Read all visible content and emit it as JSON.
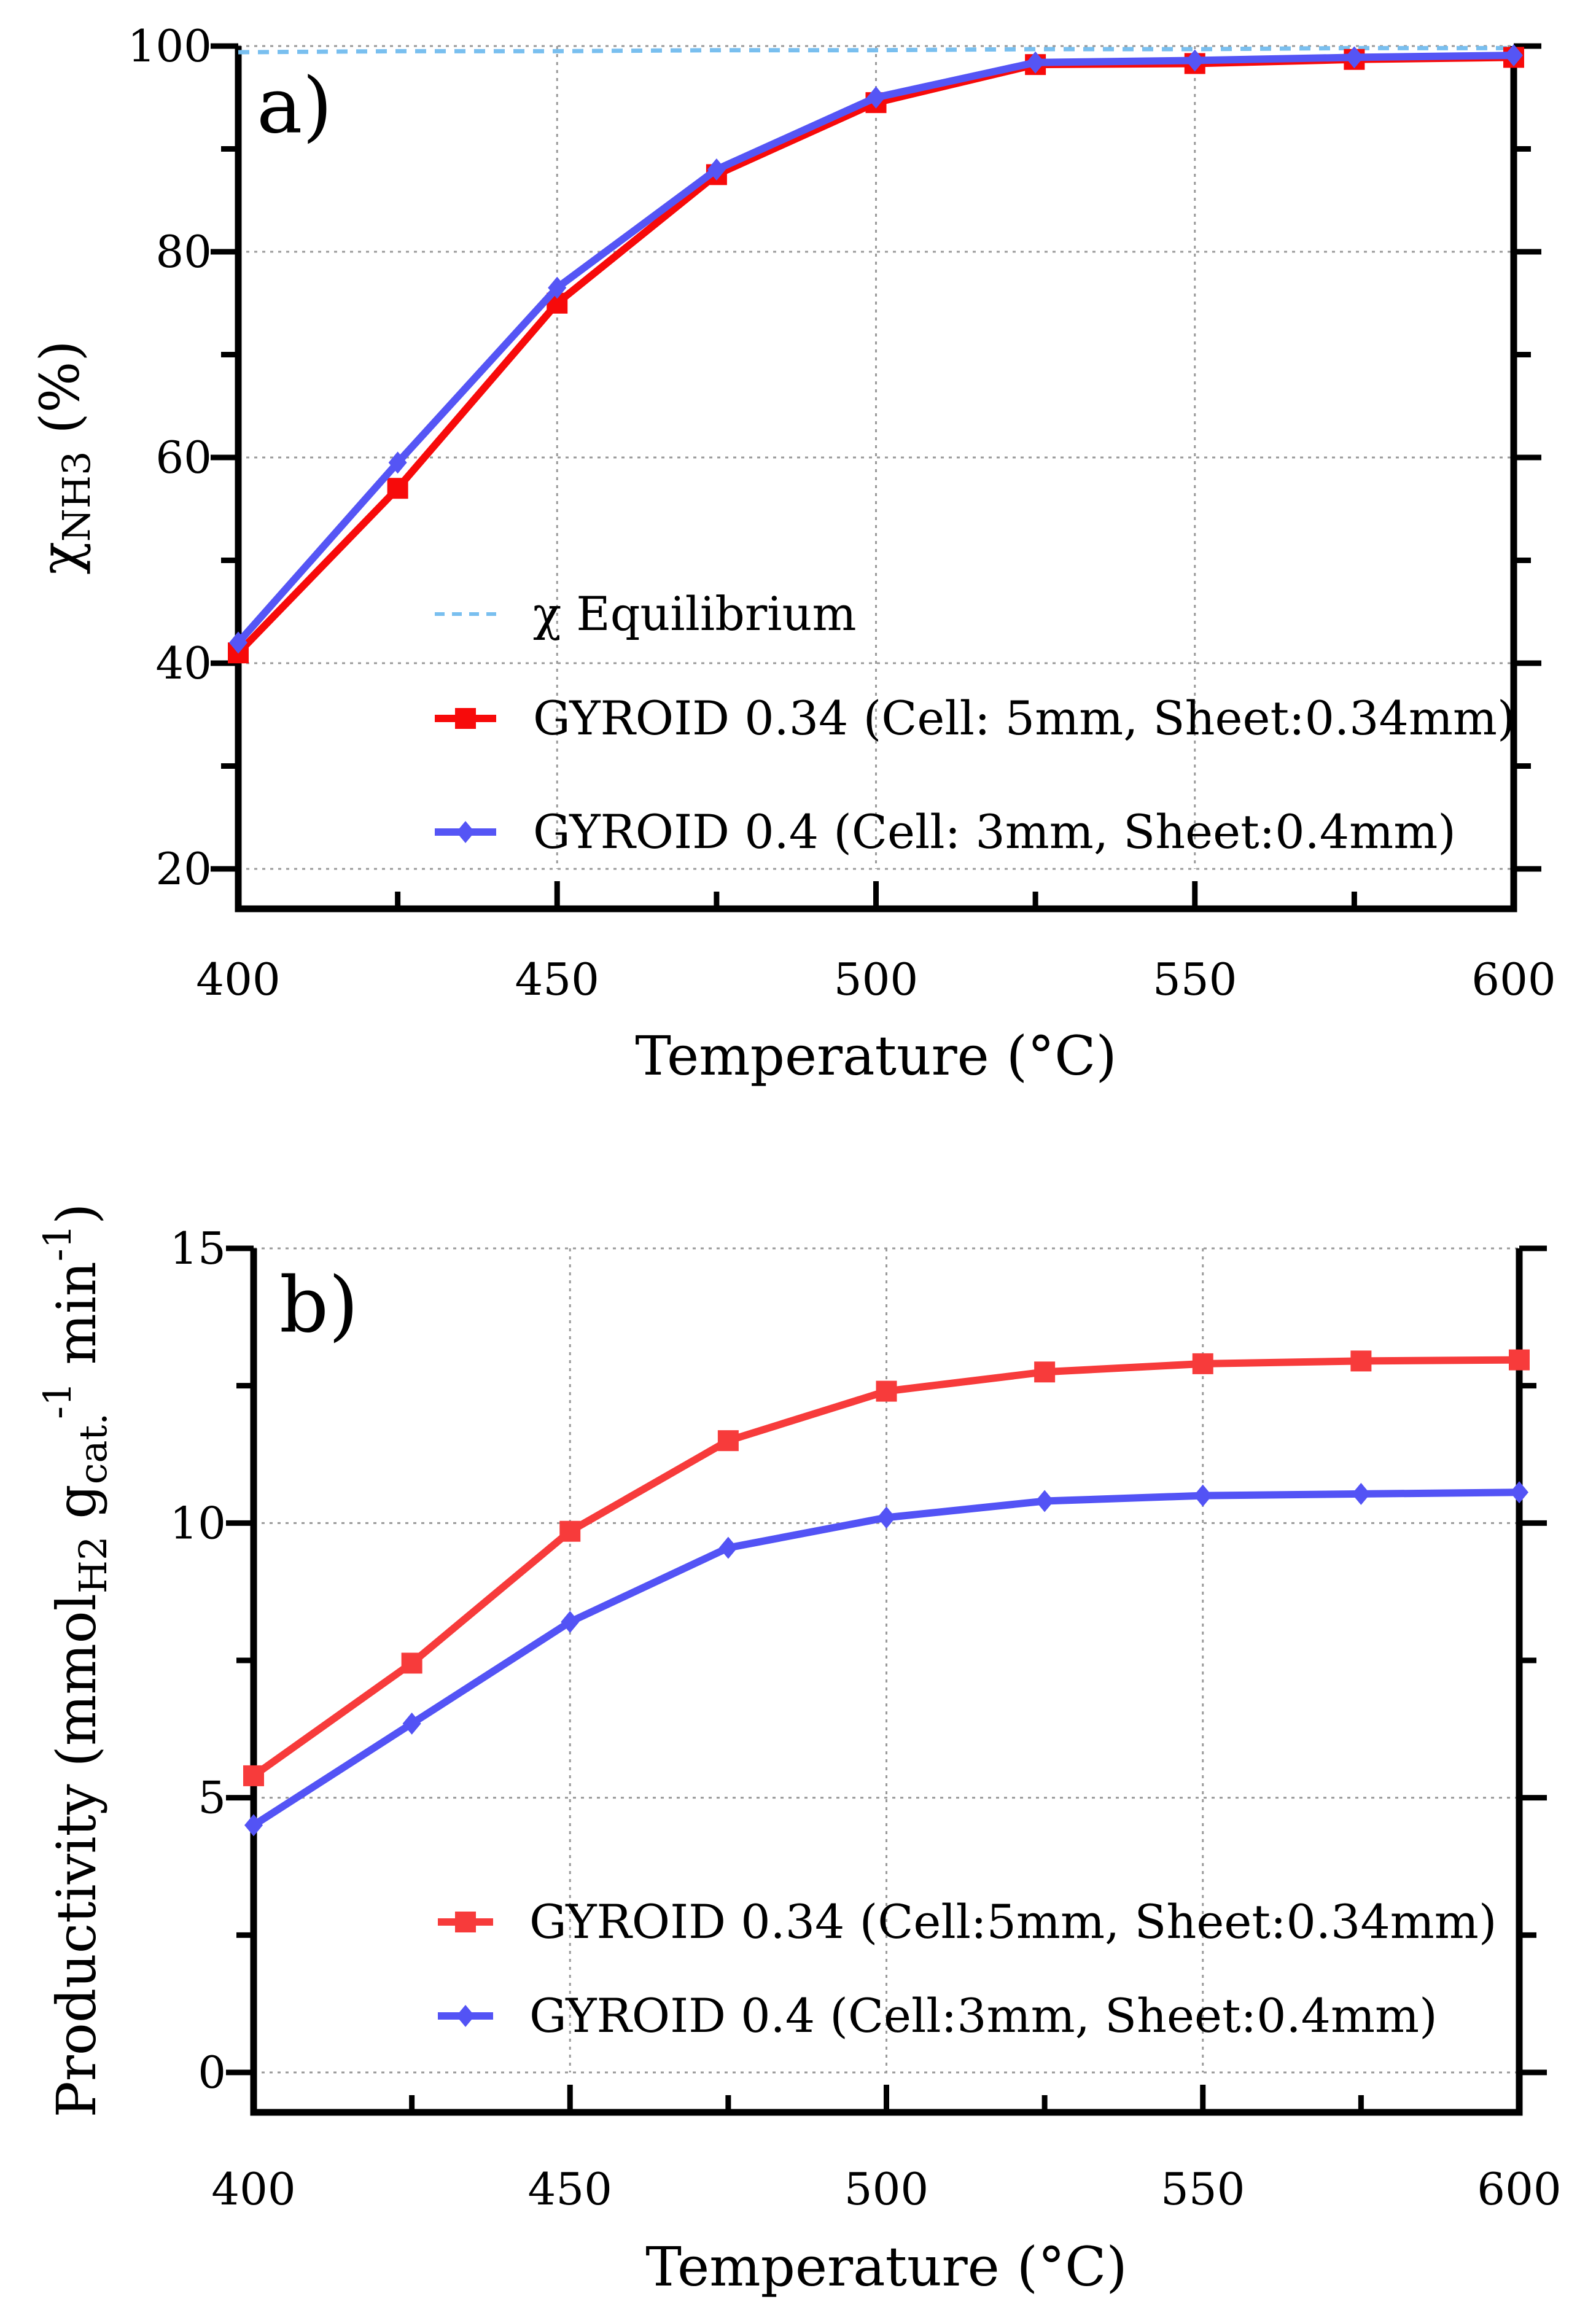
{
  "chart_data": [
    {
      "type": "line",
      "panel_label": "a)",
      "xlabel": "Temperature (°C)",
      "ylabel_parts": [
        "χ",
        "NH3",
        " (%)"
      ],
      "xlim": [
        400,
        600
      ],
      "ylim": [
        20,
        100
      ],
      "x_ticks": [
        400,
        450,
        500,
        550,
        600
      ],
      "y_ticks": [
        20,
        40,
        60,
        80,
        100
      ],
      "grid": true,
      "legend_position": "bottom-right",
      "x": [
        400,
        425,
        450,
        475,
        500,
        525,
        550,
        575,
        600
      ],
      "series": [
        {
          "name": "χ Equilibrium",
          "style": "dashed",
          "marker": "none",
          "color": "#79BFEF",
          "values": [
            99.4,
            99.5,
            99.5,
            99.6,
            99.6,
            99.7,
            99.7,
            99.8,
            99.8
          ]
        },
        {
          "name": "GYROID 0.34 (Cell: 5mm, Sheet:0.34mm)",
          "style": "solid",
          "marker": "square",
          "color": "#F70A0A",
          "values": [
            41,
            57,
            75,
            87.5,
            94.5,
            98.2,
            98.3,
            98.7,
            98.9
          ]
        },
        {
          "name": "GYROID 0.4 (Cell: 3mm, Sheet:0.4mm)",
          "style": "solid",
          "marker": "diamond",
          "color": "#5555F5",
          "values": [
            42,
            59.5,
            76.5,
            88,
            95,
            98.4,
            98.6,
            98.9,
            99.1
          ]
        }
      ]
    },
    {
      "type": "line",
      "panel_label": "b)",
      "xlabel": "Temperature (°C)",
      "ylabel_parts": [
        "Productivity (mmol",
        "H2",
        " g",
        "cat.",
        "-1",
        " min",
        "-1",
        ")"
      ],
      "xlim": [
        400,
        600
      ],
      "ylim": [
        0,
        15
      ],
      "x_ticks": [
        400,
        450,
        500,
        550,
        600
      ],
      "y_ticks": [
        0,
        5,
        10,
        15
      ],
      "grid": true,
      "legend_position": "bottom-right",
      "x": [
        400,
        425,
        450,
        475,
        500,
        525,
        550,
        575,
        600
      ],
      "series": [
        {
          "name": "GYROID 0.34 (Cell:5mm, Sheet:0.34mm)",
          "style": "solid",
          "marker": "square",
          "color": "#F73B3B",
          "values": [
            5.4,
            7.45,
            9.85,
            11.5,
            12.4,
            12.75,
            12.9,
            12.95,
            12.97
          ]
        },
        {
          "name": "GYROID 0.4 (Cell:3mm, Sheet:0.4mm)",
          "style": "solid",
          "marker": "diamond",
          "color": "#5353F5",
          "values": [
            4.5,
            6.35,
            8.2,
            9.55,
            10.1,
            10.4,
            10.5,
            10.53,
            10.56
          ]
        }
      ]
    }
  ]
}
